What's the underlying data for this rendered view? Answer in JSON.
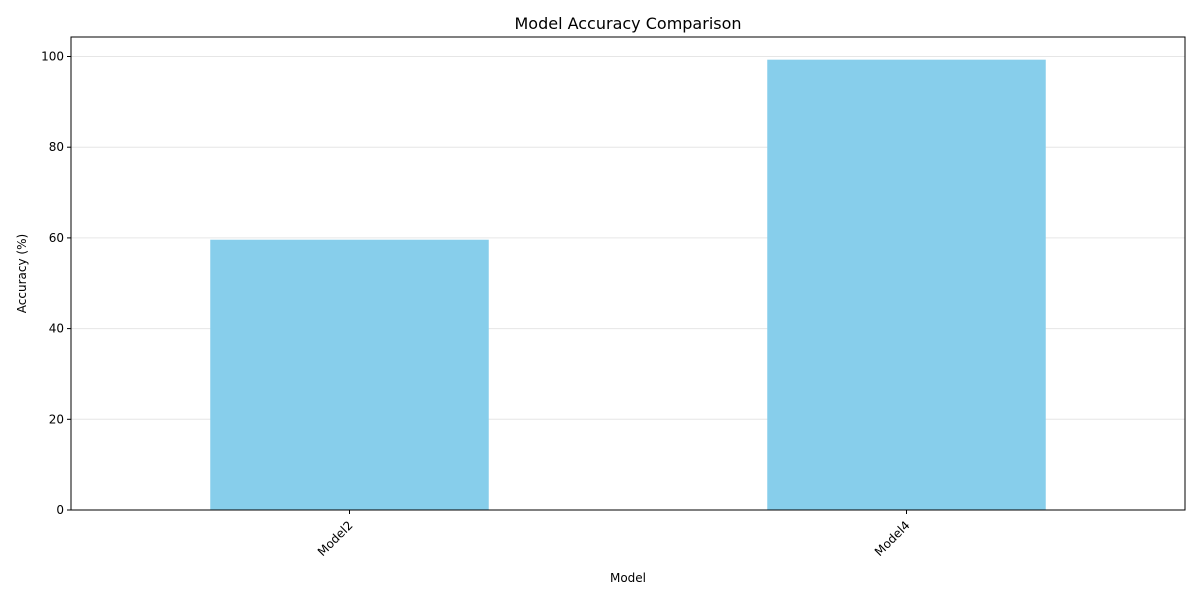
{
  "chart_data": {
    "type": "bar",
    "title": "Model Accuracy Comparison",
    "xlabel": "Model",
    "ylabel": "Accuracy (%)",
    "categories": [
      "Model2",
      "Model4"
    ],
    "values": [
      59.6,
      99.3
    ],
    "ylim": [
      0,
      104.3
    ],
    "yticks": [
      0,
      20,
      40,
      60,
      80,
      100
    ],
    "ytick_labels": [
      "0",
      "20",
      "40",
      "60",
      "80",
      "100"
    ],
    "xtick_rotation_deg": 45,
    "grid": "y-major",
    "legend": "none",
    "bar_color": "#87CEEB",
    "grid_color": "#e6e6e6",
    "axis_color": "#000000"
  }
}
